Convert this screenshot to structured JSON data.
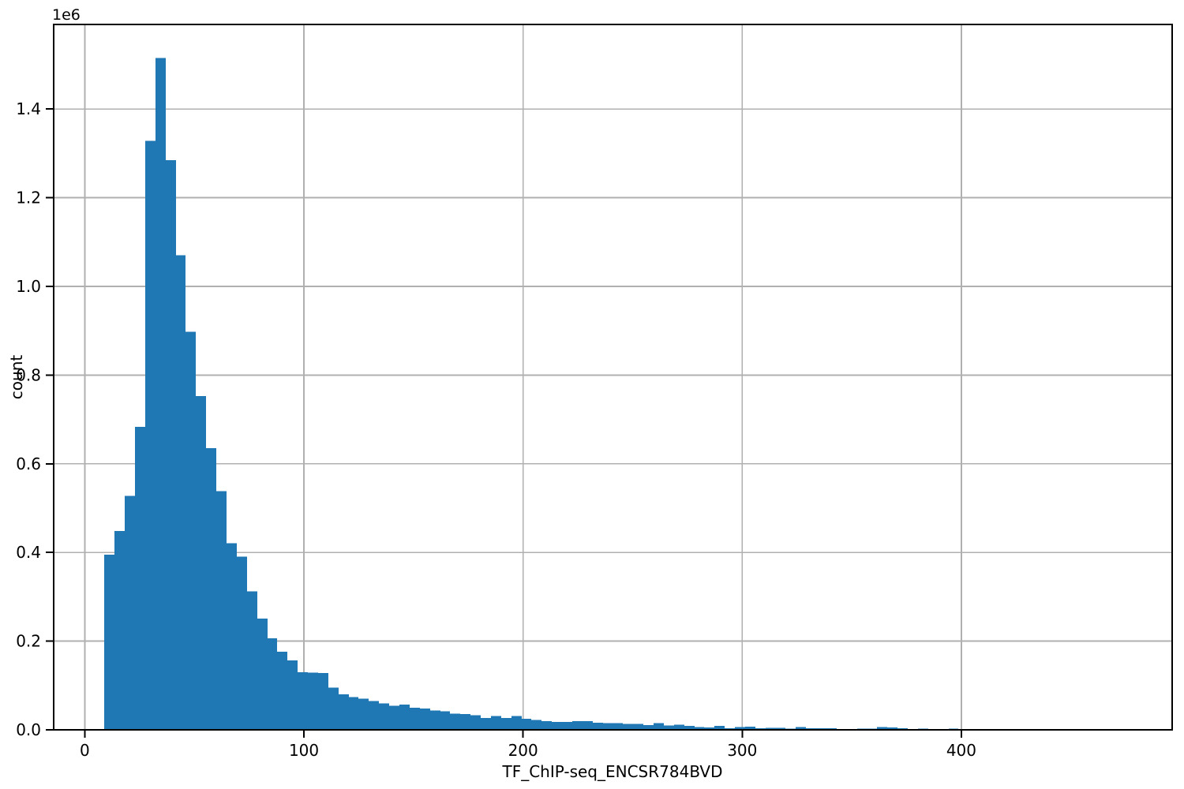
{
  "chart_data": {
    "type": "bar",
    "title": "",
    "xlabel": "TF_ChIP-seq_ENCSR784BVD",
    "ylabel": "count",
    "offset_text": "1e6",
    "bar_color": "#1f77b4",
    "grid_color": "#b0b0b0",
    "spine_color": "#000000",
    "text_color": "#000000",
    "background_color": "#ffffff",
    "grid_on": true,
    "legend": null,
    "xlim": [
      -14.2,
      496.2
    ],
    "ylim": [
      0,
      1590750
    ],
    "xtick_values": [
      0,
      100,
      200,
      300,
      400
    ],
    "xtick_labels": [
      "0",
      "100",
      "200",
      "300",
      "400"
    ],
    "ytick_values": [
      0,
      200000,
      400000,
      600000,
      800000,
      1000000,
      1200000,
      1400000
    ],
    "ytick_labels": [
      "0.0",
      "0.2",
      "0.4",
      "0.6",
      "0.8",
      "1.0",
      "1.2",
      "1.4"
    ],
    "bin_start": 9.0,
    "bin_width": 4.64,
    "counts": [
      395000,
      448000,
      528000,
      683000,
      1328000,
      1515000,
      1285000,
      1070000,
      898000,
      753000,
      635000,
      538000,
      421000,
      391000,
      312000,
      251000,
      206000,
      176000,
      157000,
      130000,
      129000,
      128000,
      95000,
      80000,
      74000,
      70000,
      65000,
      60000,
      54000,
      56500,
      50000,
      48000,
      43500,
      41500,
      36700,
      35600,
      32600,
      27000,
      31000,
      27000,
      31000,
      25000,
      22000,
      20000,
      18000,
      18000,
      20000,
      20000,
      16000,
      15000,
      15000,
      13000,
      13000,
      11000,
      15000,
      10000,
      12000,
      9000,
      6000,
      5500,
      9000,
      4000,
      6500,
      7000,
      4000,
      4500,
      4500,
      2500,
      6000,
      3500,
      3500,
      3500,
      1200,
      1200,
      3000,
      3000,
      6500,
      5000,
      3500,
      1000,
      3000,
      1000,
      500,
      3000,
      400,
      300,
      200,
      200,
      100,
      100,
      100,
      0,
      100,
      0,
      0,
      100,
      0,
      0,
      0,
      100
    ]
  }
}
